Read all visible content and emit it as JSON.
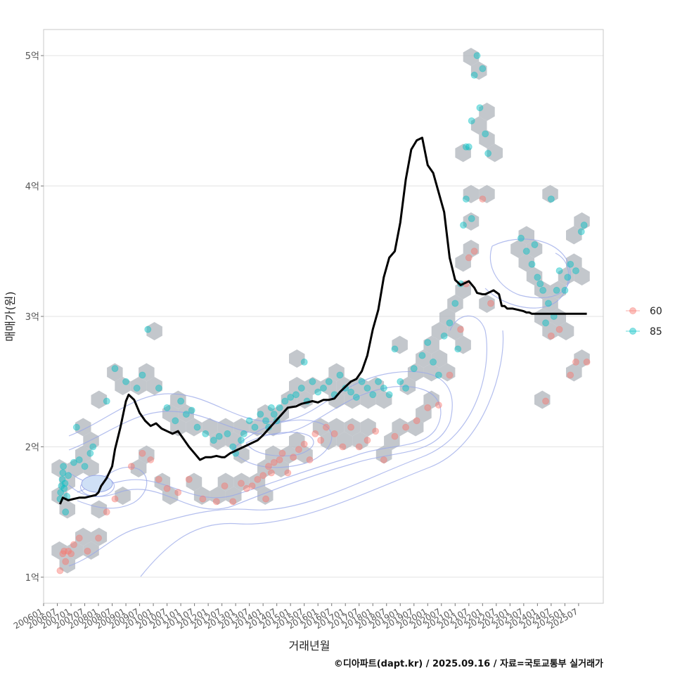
{
  "chart_data": {
    "type": "scatter",
    "title": "",
    "xlabel": "거래년월",
    "ylabel": "매매가(원)",
    "caption": "©디아파트(dapt.kr) / 2025.09.16 / 자료=국토교통부 실거래가",
    "ylim": [
      0.8,
      5.2
    ],
    "xlim": [
      2006.0,
      2026.4
    ],
    "y_ticks": [
      {
        "value": 1,
        "label": "1억"
      },
      {
        "value": 2,
        "label": "2억"
      },
      {
        "value": 3,
        "label": "3억"
      },
      {
        "value": 4,
        "label": "4억"
      },
      {
        "value": 5,
        "label": "5억"
      }
    ],
    "x_ticks": [
      {
        "value": 2006.0,
        "label": "200601"
      },
      {
        "value": 2006.5,
        "label": "200607"
      },
      {
        "value": 2007.0,
        "label": "200701"
      },
      {
        "value": 2007.5,
        "label": "200707"
      },
      {
        "value": 2008.0,
        "label": "200801"
      },
      {
        "value": 2008.5,
        "label": "200807"
      },
      {
        "value": 2009.0,
        "label": "200901"
      },
      {
        "value": 2009.5,
        "label": "200907"
      },
      {
        "value": 2010.0,
        "label": "201001"
      },
      {
        "value": 2010.5,
        "label": "201007"
      },
      {
        "value": 2011.0,
        "label": "201101"
      },
      {
        "value": 2011.5,
        "label": "201107"
      },
      {
        "value": 2012.0,
        "label": "201201"
      },
      {
        "value": 2012.5,
        "label": "201207"
      },
      {
        "value": 2013.0,
        "label": "201301"
      },
      {
        "value": 2013.5,
        "label": "201307"
      },
      {
        "value": 2014.0,
        "label": "201401"
      },
      {
        "value": 2014.5,
        "label": "201407"
      },
      {
        "value": 2015.0,
        "label": "201501"
      },
      {
        "value": 2015.5,
        "label": "201507"
      },
      {
        "value": 2016.0,
        "label": "201601"
      },
      {
        "value": 2016.5,
        "label": "201607"
      },
      {
        "value": 2017.0,
        "label": "201701"
      },
      {
        "value": 2017.5,
        "label": "201707"
      },
      {
        "value": 2018.0,
        "label": "201801"
      },
      {
        "value": 2018.5,
        "label": "201807"
      },
      {
        "value": 2019.0,
        "label": "201901"
      },
      {
        "value": 2019.5,
        "label": "201907"
      },
      {
        "value": 2020.0,
        "label": "202001"
      },
      {
        "value": 2020.5,
        "label": "202007"
      },
      {
        "value": 2021.0,
        "label": "202101"
      },
      {
        "value": 2021.5,
        "label": "202107"
      },
      {
        "value": 2022.0,
        "label": "202201"
      },
      {
        "value": 2022.5,
        "label": "202207"
      },
      {
        "value": 2023.0,
        "label": "202301"
      },
      {
        "value": 2023.5,
        "label": "202307"
      },
      {
        "value": 2024.0,
        "label": "202401"
      },
      {
        "value": 2024.5,
        "label": "202407"
      },
      {
        "value": 2025.0,
        "label": "202501"
      },
      {
        "value": 2025.5,
        "label": "202507"
      }
    ],
    "legend": {
      "position": "right",
      "entries": [
        {
          "name": "60",
          "color": "#F8766D"
        },
        {
          "name": "85",
          "color": "#00BFC4"
        }
      ]
    },
    "colors": {
      "hex": "#b4b9bf",
      "contour": "#9aa8e8",
      "trend": "#000000",
      "grid": "#e3e3e3",
      "panel_border": "#c8c8c8"
    },
    "trend_line": {
      "name": "moving average",
      "x": [
        2006.6,
        2006.7,
        2006.9,
        2007.1,
        2007.3,
        2007.5,
        2007.7,
        2007.9,
        2008.0,
        2008.1,
        2008.3,
        2008.5,
        2008.6,
        2008.8,
        2009.0,
        2009.1,
        2009.3,
        2009.5,
        2009.7,
        2009.9,
        2010.1,
        2010.3,
        2010.5,
        2010.7,
        2010.9,
        2011.1,
        2011.3,
        2011.5,
        2011.7,
        2011.9,
        2012.1,
        2012.3,
        2012.5,
        2012.6,
        2012.8,
        2013.0,
        2013.2,
        2013.4,
        2013.6,
        2013.8,
        2014.0,
        2014.3,
        2014.6,
        2014.9,
        2015.2,
        2015.4,
        2015.6,
        2015.8,
        2016.0,
        2016.2,
        2016.4,
        2016.6,
        2016.8,
        2017.0,
        2017.2,
        2017.4,
        2017.6,
        2017.8,
        2018.0,
        2018.2,
        2018.4,
        2018.6,
        2018.8,
        2019.0,
        2019.2,
        2019.4,
        2019.6,
        2019.8,
        2020.0,
        2020.2,
        2020.4,
        2020.6,
        2020.8,
        2021.0,
        2021.2,
        2021.4,
        2021.5,
        2021.7,
        2021.8,
        2022.0,
        2022.1,
        2022.3,
        2022.4,
        2022.6,
        2022.7,
        2022.8,
        2022.9,
        2023.1,
        2023.3,
        2023.5,
        2023.6,
        2023.7,
        2023.8,
        2024.0,
        2024.2,
        2024.4,
        2024.6,
        2024.8,
        2025.0,
        2025.2,
        2025.3,
        2025.5,
        2025.6,
        2025.8
      ],
      "y": [
        1.56,
        1.61,
        1.59,
        1.6,
        1.61,
        1.61,
        1.62,
        1.63,
        1.65,
        1.7,
        1.76,
        1.85,
        1.98,
        2.15,
        2.35,
        2.4,
        2.36,
        2.26,
        2.2,
        2.16,
        2.18,
        2.14,
        2.12,
        2.1,
        2.12,
        2.06,
        2.0,
        1.95,
        1.9,
        1.92,
        1.92,
        1.93,
        1.92,
        1.92,
        1.95,
        1.97,
        1.99,
        2.01,
        2.03,
        2.05,
        2.09,
        2.16,
        2.23,
        2.3,
        2.31,
        2.33,
        2.34,
        2.35,
        2.34,
        2.36,
        2.36,
        2.37,
        2.42,
        2.46,
        2.5,
        2.52,
        2.58,
        2.7,
        2.9,
        3.05,
        3.3,
        3.45,
        3.5,
        3.72,
        4.05,
        4.28,
        4.35,
        4.37,
        4.16,
        4.1,
        3.95,
        3.8,
        3.45,
        3.28,
        3.24,
        3.26,
        3.27,
        3.22,
        3.18,
        3.17,
        3.17,
        3.19,
        3.2,
        3.17,
        3.08,
        3.08,
        3.06,
        3.06,
        3.05,
        3.04,
        3.03,
        3.03,
        3.02,
        3.02,
        3.02,
        3.02,
        3.02,
        3.02,
        3.02,
        3.02,
        3.02,
        3.02,
        3.02,
        3.02
      ]
    },
    "series": [
      {
        "name": "60",
        "color": "#F8766D",
        "points": [
          {
            "x": 2006.6,
            "y": 1.05
          },
          {
            "x": 2006.7,
            "y": 1.18
          },
          {
            "x": 2006.75,
            "y": 1.2
          },
          {
            "x": 2006.8,
            "y": 1.12
          },
          {
            "x": 2006.9,
            "y": 1.2
          },
          {
            "x": 2007.0,
            "y": 1.18
          },
          {
            "x": 2007.1,
            "y": 1.25
          },
          {
            "x": 2007.3,
            "y": 1.3
          },
          {
            "x": 2007.6,
            "y": 1.2
          },
          {
            "x": 2008.0,
            "y": 1.3
          },
          {
            "x": 2008.3,
            "y": 1.5
          },
          {
            "x": 2008.6,
            "y": 1.6
          },
          {
            "x": 2009.2,
            "y": 1.85
          },
          {
            "x": 2009.6,
            "y": 1.95
          },
          {
            "x": 2009.9,
            "y": 1.9
          },
          {
            "x": 2010.2,
            "y": 1.75
          },
          {
            "x": 2010.5,
            "y": 1.68
          },
          {
            "x": 2010.9,
            "y": 1.65
          },
          {
            "x": 2011.3,
            "y": 1.75
          },
          {
            "x": 2011.8,
            "y": 1.6
          },
          {
            "x": 2012.3,
            "y": 1.58
          },
          {
            "x": 2012.6,
            "y": 1.7
          },
          {
            "x": 2012.9,
            "y": 1.58
          },
          {
            "x": 2013.2,
            "y": 1.72
          },
          {
            "x": 2013.4,
            "y": 1.68
          },
          {
            "x": 2013.6,
            "y": 1.7
          },
          {
            "x": 2013.8,
            "y": 1.75
          },
          {
            "x": 2014.0,
            "y": 1.78
          },
          {
            "x": 2014.1,
            "y": 1.6
          },
          {
            "x": 2014.2,
            "y": 1.85
          },
          {
            "x": 2014.3,
            "y": 1.8
          },
          {
            "x": 2014.4,
            "y": 1.88
          },
          {
            "x": 2014.6,
            "y": 1.9
          },
          {
            "x": 2014.7,
            "y": 1.95
          },
          {
            "x": 2014.9,
            "y": 1.8
          },
          {
            "x": 2015.1,
            "y": 1.92
          },
          {
            "x": 2015.3,
            "y": 1.98
          },
          {
            "x": 2015.5,
            "y": 2.02
          },
          {
            "x": 2015.7,
            "y": 1.9
          },
          {
            "x": 2015.9,
            "y": 2.1
          },
          {
            "x": 2016.1,
            "y": 2.05
          },
          {
            "x": 2016.3,
            "y": 2.15
          },
          {
            "x": 2016.6,
            "y": 2.1
          },
          {
            "x": 2016.9,
            "y": 2.0
          },
          {
            "x": 2017.2,
            "y": 2.15
          },
          {
            "x": 2017.5,
            "y": 2.0
          },
          {
            "x": 2017.8,
            "y": 2.05
          },
          {
            "x": 2018.1,
            "y": 2.12
          },
          {
            "x": 2018.4,
            "y": 1.9
          },
          {
            "x": 2018.8,
            "y": 2.08
          },
          {
            "x": 2019.2,
            "y": 2.15
          },
          {
            "x": 2019.6,
            "y": 2.2
          },
          {
            "x": 2020.0,
            "y": 2.3
          },
          {
            "x": 2020.4,
            "y": 2.32
          },
          {
            "x": 2020.8,
            "y": 2.55
          },
          {
            "x": 2021.2,
            "y": 2.9
          },
          {
            "x": 2021.4,
            "y": 3.25
          },
          {
            "x": 2021.5,
            "y": 3.45
          },
          {
            "x": 2021.7,
            "y": 3.5
          },
          {
            "x": 2022.0,
            "y": 3.9
          },
          {
            "x": 2022.3,
            "y": 3.1
          },
          {
            "x": 2024.3,
            "y": 2.35
          },
          {
            "x": 2024.5,
            "y": 2.85
          },
          {
            "x": 2024.8,
            "y": 2.9
          },
          {
            "x": 2025.2,
            "y": 2.55
          },
          {
            "x": 2025.4,
            "y": 2.65
          },
          {
            "x": 2025.8,
            "y": 2.65
          }
        ]
      },
      {
        "name": "85",
        "color": "#00BFC4",
        "points": [
          {
            "x": 2006.6,
            "y": 1.6
          },
          {
            "x": 2006.62,
            "y": 1.65
          },
          {
            "x": 2006.65,
            "y": 1.7
          },
          {
            "x": 2006.68,
            "y": 1.75
          },
          {
            "x": 2006.7,
            "y": 1.8
          },
          {
            "x": 2006.72,
            "y": 1.85
          },
          {
            "x": 2006.75,
            "y": 1.68
          },
          {
            "x": 2006.78,
            "y": 1.72
          },
          {
            "x": 2006.8,
            "y": 1.5
          },
          {
            "x": 2006.85,
            "y": 1.62
          },
          {
            "x": 2006.9,
            "y": 1.78
          },
          {
            "x": 2007.1,
            "y": 1.88
          },
          {
            "x": 2007.3,
            "y": 1.9
          },
          {
            "x": 2007.5,
            "y": 1.85
          },
          {
            "x": 2007.7,
            "y": 1.95
          },
          {
            "x": 2007.2,
            "y": 2.15
          },
          {
            "x": 2007.8,
            "y": 2.0
          },
          {
            "x": 2008.3,
            "y": 2.35
          },
          {
            "x": 2008.6,
            "y": 2.6
          },
          {
            "x": 2009.0,
            "y": 2.5
          },
          {
            "x": 2009.4,
            "y": 2.45
          },
          {
            "x": 2009.6,
            "y": 2.55
          },
          {
            "x": 2009.8,
            "y": 2.9
          },
          {
            "x": 2010.2,
            "y": 2.45
          },
          {
            "x": 2010.5,
            "y": 2.3
          },
          {
            "x": 2010.8,
            "y": 2.2
          },
          {
            "x": 2011.0,
            "y": 2.35
          },
          {
            "x": 2011.2,
            "y": 2.25
          },
          {
            "x": 2011.4,
            "y": 2.28
          },
          {
            "x": 2011.6,
            "y": 2.15
          },
          {
            "x": 2011.9,
            "y": 2.1
          },
          {
            "x": 2012.2,
            "y": 2.05
          },
          {
            "x": 2012.4,
            "y": 2.08
          },
          {
            "x": 2012.7,
            "y": 2.1
          },
          {
            "x": 2012.9,
            "y": 2.0
          },
          {
            "x": 2013.0,
            "y": 1.95
          },
          {
            "x": 2013.2,
            "y": 2.05
          },
          {
            "x": 2013.3,
            "y": 2.1
          },
          {
            "x": 2013.5,
            "y": 2.2
          },
          {
            "x": 2013.7,
            "y": 2.15
          },
          {
            "x": 2013.9,
            "y": 2.25
          },
          {
            "x": 2014.1,
            "y": 2.2
          },
          {
            "x": 2014.2,
            "y": 2.15
          },
          {
            "x": 2014.3,
            "y": 2.3
          },
          {
            "x": 2014.4,
            "y": 2.25
          },
          {
            "x": 2014.5,
            "y": 2.2
          },
          {
            "x": 2014.6,
            "y": 2.3
          },
          {
            "x": 2014.8,
            "y": 2.35
          },
          {
            "x": 2015.0,
            "y": 2.38
          },
          {
            "x": 2015.2,
            "y": 2.4
          },
          {
            "x": 2015.4,
            "y": 2.45
          },
          {
            "x": 2015.5,
            "y": 2.65
          },
          {
            "x": 2015.6,
            "y": 2.35
          },
          {
            "x": 2015.8,
            "y": 2.5
          },
          {
            "x": 2016.0,
            "y": 2.42
          },
          {
            "x": 2016.2,
            "y": 2.45
          },
          {
            "x": 2016.4,
            "y": 2.5
          },
          {
            "x": 2016.6,
            "y": 2.4
          },
          {
            "x": 2016.8,
            "y": 2.55
          },
          {
            "x": 2017.0,
            "y": 2.45
          },
          {
            "x": 2017.2,
            "y": 2.42
          },
          {
            "x": 2017.4,
            "y": 2.38
          },
          {
            "x": 2017.6,
            "y": 2.5
          },
          {
            "x": 2017.8,
            "y": 2.45
          },
          {
            "x": 2018.0,
            "y": 2.4
          },
          {
            "x": 2018.2,
            "y": 2.5
          },
          {
            "x": 2018.4,
            "y": 2.45
          },
          {
            "x": 2018.6,
            "y": 2.4
          },
          {
            "x": 2018.8,
            "y": 2.75
          },
          {
            "x": 2019.0,
            "y": 2.5
          },
          {
            "x": 2019.2,
            "y": 2.45
          },
          {
            "x": 2019.5,
            "y": 2.6
          },
          {
            "x": 2019.8,
            "y": 2.7
          },
          {
            "x": 2020.0,
            "y": 2.8
          },
          {
            "x": 2020.2,
            "y": 2.65
          },
          {
            "x": 2020.4,
            "y": 2.55
          },
          {
            "x": 2020.6,
            "y": 2.85
          },
          {
            "x": 2020.8,
            "y": 2.95
          },
          {
            "x": 2021.0,
            "y": 3.1
          },
          {
            "x": 2021.1,
            "y": 2.75
          },
          {
            "x": 2021.2,
            "y": 3.25
          },
          {
            "x": 2021.3,
            "y": 3.7
          },
          {
            "x": 2021.4,
            "y": 3.9
          },
          {
            "x": 2021.5,
            "y": 4.3
          },
          {
            "x": 2021.6,
            "y": 4.5
          },
          {
            "x": 2021.7,
            "y": 4.85
          },
          {
            "x": 2021.8,
            "y": 5.0
          },
          {
            "x": 2021.9,
            "y": 4.6
          },
          {
            "x": 2022.0,
            "y": 4.9
          },
          {
            "x": 2022.1,
            "y": 4.4
          },
          {
            "x": 2022.2,
            "y": 4.25
          },
          {
            "x": 2021.4,
            "y": 4.3
          },
          {
            "x": 2021.6,
            "y": 3.75
          },
          {
            "x": 2023.4,
            "y": 3.6
          },
          {
            "x": 2023.6,
            "y": 3.5
          },
          {
            "x": 2023.8,
            "y": 3.4
          },
          {
            "x": 2024.0,
            "y": 3.3
          },
          {
            "x": 2024.2,
            "y": 3.2
          },
          {
            "x": 2024.4,
            "y": 3.1
          },
          {
            "x": 2024.5,
            "y": 3.9
          },
          {
            "x": 2024.6,
            "y": 3.0
          },
          {
            "x": 2024.8,
            "y": 3.35
          },
          {
            "x": 2025.0,
            "y": 3.2
          },
          {
            "x": 2025.2,
            "y": 3.4
          },
          {
            "x": 2025.4,
            "y": 3.35
          },
          {
            "x": 2025.6,
            "y": 3.65
          },
          {
            "x": 2025.7,
            "y": 3.7
          },
          {
            "x": 2024.1,
            "y": 3.25
          },
          {
            "x": 2023.9,
            "y": 3.55
          },
          {
            "x": 2024.3,
            "y": 2.95
          },
          {
            "x": 2024.7,
            "y": 3.2
          },
          {
            "x": 2025.1,
            "y": 3.3
          }
        ]
      }
    ]
  }
}
